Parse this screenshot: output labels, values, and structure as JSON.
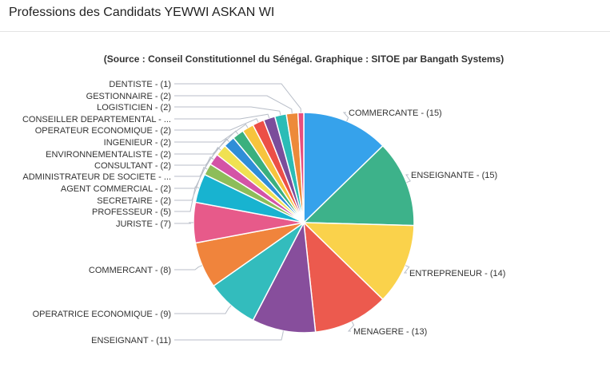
{
  "header": {
    "title": "Professions des Candidats YEWWI ASKAN WI"
  },
  "chart_data": {
    "type": "pie",
    "subtitle": "(Source : Conseil Constitutionnel du Sénégal. Graphique : SITOE par Bangath Systems)",
    "slices": [
      {
        "label": "COMMERCANTE - (15)",
        "value": 15,
        "color": "#36a2eb"
      },
      {
        "label": "ENSEIGNANTE - (15)",
        "value": 15,
        "color": "#3db28a"
      },
      {
        "label": "ENTREPRENEUR - (14)",
        "value": 14,
        "color": "#fad24b"
      },
      {
        "label": "MENAGERE - (13)",
        "value": 13,
        "color": "#ec5a4e"
      },
      {
        "label": "ENSEIGNANT - (11)",
        "value": 11,
        "color": "#874e9c"
      },
      {
        "label": "OPERATRICE ECONOMIQUE - (9)",
        "value": 9,
        "color": "#33bcbd"
      },
      {
        "label": "COMMERCANT - (8)",
        "value": 8,
        "color": "#f0843c"
      },
      {
        "label": "JURISTE - (7)",
        "value": 7,
        "color": "#e75a8a"
      },
      {
        "label": "PROFESSEUR - (5)",
        "value": 5,
        "color": "#18b3d0"
      },
      {
        "label": "SECRETAIRE - (2)",
        "value": 2,
        "color": "#8dbd59"
      },
      {
        "label": "AGENT COMMERCIAL - (2)",
        "value": 2,
        "color": "#d453a6"
      },
      {
        "label": "ADMINISTRATEUR DE SOCIETE - ...",
        "value": 2,
        "color": "#f0e152"
      },
      {
        "label": "CONSULTANT - (2)",
        "value": 2,
        "color": "#2f8ed7"
      },
      {
        "label": "ENVIRONNEMENTALISTE - (2)",
        "value": 2,
        "color": "#3ab07e"
      },
      {
        "label": "INGENIEUR - (2)",
        "value": 2,
        "color": "#f7c43d"
      },
      {
        "label": "OPERATEUR ECONOMIQUE - (2)",
        "value": 2,
        "color": "#ec4f46"
      },
      {
        "label": "CONSEILLER DEPARTEMENTAL - ...",
        "value": 2,
        "color": "#7b4d9b"
      },
      {
        "label": "LOGISTICIEN - (2)",
        "value": 2,
        "color": "#2bbcb6"
      },
      {
        "label": "GESTIONNAIRE - (2)",
        "value": 2,
        "color": "#ed8a3a"
      },
      {
        "label": "DENTISTE - (1)",
        "value": 1,
        "color": "#e84e7d"
      }
    ]
  }
}
